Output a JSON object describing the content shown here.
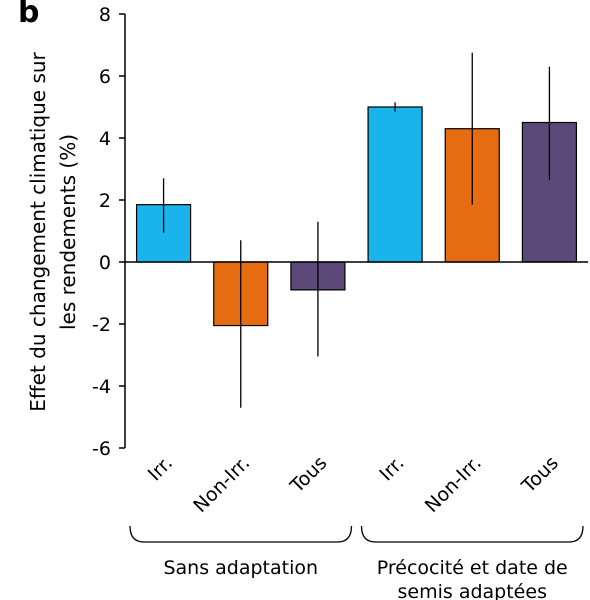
{
  "chart_data": {
    "type": "bar",
    "panel_label": "b",
    "ylabel_line1": "Effet du changement climatique sur",
    "ylabel_line2": "les rendements (%)",
    "ylim": [
      -6,
      8
    ],
    "yticks": [
      -6,
      -4,
      -2,
      0,
      2,
      4,
      6,
      8
    ],
    "categories": [
      "Irr.",
      "Non-Irr.",
      "Tous",
      "Irr.",
      "Non-Irr.",
      "Tous"
    ],
    "values": [
      1.85,
      -2.05,
      -0.9,
      5.0,
      4.3,
      4.5
    ],
    "error_low": [
      0.95,
      -4.7,
      -3.05,
      4.85,
      1.85,
      2.65
    ],
    "error_high": [
      2.7,
      0.7,
      1.3,
      5.15,
      6.75,
      6.3
    ],
    "colors": [
      "#19b4ec",
      "#e66c11",
      "#5c4879",
      "#19b4ec",
      "#e66c11",
      "#5c4879"
    ],
    "groups": [
      {
        "label_line1": "Sans adaptation",
        "label_line2": "",
        "categories": [
          0,
          1,
          2
        ]
      },
      {
        "label_line1": "Précocité et date de",
        "label_line2": "semis adaptées",
        "categories": [
          3,
          4,
          5
        ]
      }
    ],
    "grid": false,
    "legend": "none"
  }
}
